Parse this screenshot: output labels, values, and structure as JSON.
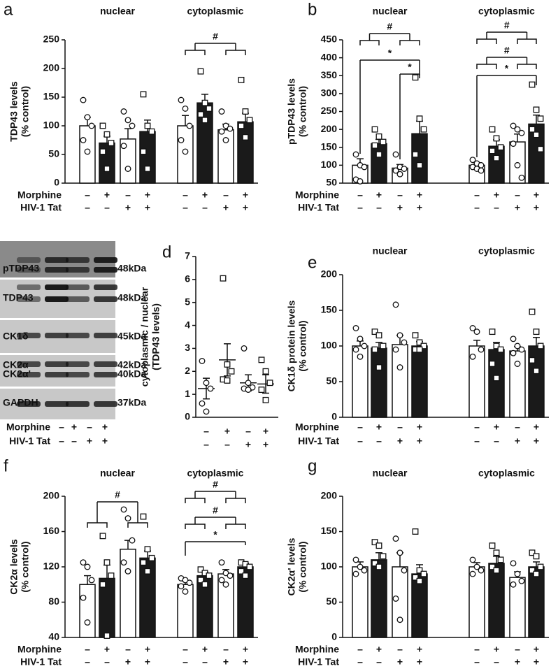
{
  "chart_data": [
    {
      "type": "bar",
      "panel": "a",
      "ylabel": [
        "TDP43 levels",
        "(% control)"
      ],
      "groups": [
        "nuclear",
        "cytoplasmic"
      ],
      "ylim": [
        0,
        250
      ],
      "yticks": [
        0,
        50,
        100,
        150,
        200,
        250
      ],
      "values": [
        100,
        70,
        77,
        90,
        100,
        140,
        93,
        107
      ],
      "errors": [
        15,
        12,
        18,
        20,
        18,
        15,
        10,
        15
      ],
      "points": [
        [
          145,
          115,
          100,
          75,
          55
        ],
        [
          100,
          85,
          70,
          55,
          25
        ],
        [
          125,
          110,
          100,
          65,
          25
        ],
        [
          155,
          100,
          90,
          55,
          25
        ],
        [
          145,
          130,
          100,
          75,
          55
        ],
        [
          195,
          140,
          130,
          120,
          110
        ],
        [
          125,
          100,
          95,
          90,
          75
        ],
        [
          180,
          125,
          110,
          100,
          80
        ]
      ],
      "colors": [
        "#ffffff",
        "#1a1a1a",
        "#ffffff",
        "#1a1a1a",
        "#ffffff",
        "#1a1a1a",
        "#ffffff",
        "#1a1a1a"
      ],
      "markers": [
        "circle",
        "square",
        "circle",
        "square",
        "circle",
        "square",
        "circle",
        "square"
      ],
      "annotations": [
        "#"
      ],
      "rows": [
        {
          "label": "Morphine",
          "signs": [
            "–",
            "+",
            "–",
            "+",
            "–",
            "+",
            "–",
            "+"
          ]
        },
        {
          "label": "HIV-1 Tat",
          "signs": [
            "–",
            "–",
            "+",
            "+",
            "–",
            "–",
            "+",
            "+"
          ]
        }
      ]
    },
    {
      "type": "bar",
      "panel": "b",
      "ylabel": [
        "pTDP43 levels",
        "(% control)"
      ],
      "groups": [
        "nuclear",
        "cytoplasmic"
      ],
      "ylim": [
        50,
        450
      ],
      "yticks": [
        50,
        100,
        150,
        200,
        250,
        300,
        350,
        400,
        450
      ],
      "values": [
        100,
        160,
        92,
        188,
        100,
        153,
        165,
        215
      ],
      "errors": [
        18,
        12,
        10,
        35,
        7,
        18,
        22,
        25
      ],
      "points": [
        [
          130,
          100,
          95,
          60,
          55
        ],
        [
          200,
          180,
          165,
          155,
          130
        ],
        [
          130,
          95,
          90,
          85,
          75
        ],
        [
          345,
          230,
          200,
          130,
          100
        ],
        [
          115,
          105,
          100,
          95,
          90,
          85
        ],
        [
          200,
          175,
          150,
          140,
          120
        ],
        [
          210,
          200,
          190,
          160,
          100,
          65
        ],
        [
          325,
          255,
          230,
          200,
          185,
          145
        ]
      ],
      "colors": [
        "#ffffff",
        "#1a1a1a",
        "#ffffff",
        "#1a1a1a",
        "#ffffff",
        "#1a1a1a",
        "#ffffff",
        "#1a1a1a"
      ],
      "markers": [
        "circle",
        "square",
        "circle",
        "square",
        "circle",
        "square",
        "circle",
        "square"
      ],
      "annotations": [
        "#",
        "*",
        "*",
        "#",
        "#",
        "*"
      ],
      "rows": [
        {
          "label": "Morphine",
          "signs": [
            "–",
            "+",
            "–",
            "+",
            "–",
            "+",
            "–",
            "+"
          ]
        },
        {
          "label": "HIV-1 Tat",
          "signs": [
            "–",
            "–",
            "+",
            "+",
            "–",
            "–",
            "+",
            "+"
          ]
        }
      ]
    },
    {
      "type": "dotplot",
      "panel": "d",
      "ylabel": [
        "cytoplasmic / nuclear",
        "(TDP43 levels)"
      ],
      "ylim": [
        0,
        7
      ],
      "yticks": [
        0,
        1,
        2,
        3,
        4,
        5,
        6,
        7
      ],
      "values": [
        1.25,
        2.5,
        1.5,
        1.45
      ],
      "errors": [
        0.45,
        0.7,
        0.35,
        0.4
      ],
      "points": [
        [
          2.45,
          1.5,
          1.25,
          0.6,
          0.25
        ],
        [
          6.05,
          2.3,
          2.0,
          1.65,
          1.6
        ],
        [
          3.0,
          1.5,
          1.3,
          1.25,
          1.2
        ],
        [
          2.5,
          2.0,
          1.5,
          1.2,
          0.75
        ]
      ],
      "markers": [
        "circle",
        "square",
        "circle",
        "square"
      ],
      "rows": [
        {
          "signs": [
            "–",
            "+",
            "–",
            "+"
          ]
        },
        {
          "signs": [
            "–",
            "–",
            "+",
            "+"
          ]
        }
      ]
    },
    {
      "type": "bar",
      "panel": "e",
      "ylabel": [
        "CK1δ protein levels",
        "(% control)"
      ],
      "groups": [
        "nuclear",
        "cytoplasmic"
      ],
      "ylim": [
        0,
        200
      ],
      "yticks": [
        0,
        50,
        100,
        150,
        200
      ],
      "values": [
        100,
        97,
        102,
        100,
        100,
        95,
        93,
        100
      ],
      "errors": [
        7,
        8,
        13,
        6,
        8,
        10,
        6,
        12
      ],
      "points": [
        [
          125,
          110,
          100,
          95,
          85
        ],
        [
          120,
          115,
          100,
          95,
          70
        ],
        [
          158,
          115,
          105,
          95,
          70
        ],
        [
          115,
          105,
          100,
          95,
          95
        ],
        [
          125,
          120,
          95,
          85
        ],
        [
          120,
          100,
          95,
          75,
          55
        ],
        [
          110,
          100,
          95,
          90,
          75
        ],
        [
          148,
          120,
          100,
          80,
          65
        ]
      ],
      "colors": [
        "#ffffff",
        "#1a1a1a",
        "#ffffff",
        "#1a1a1a",
        "#ffffff",
        "#1a1a1a",
        "#ffffff",
        "#1a1a1a"
      ],
      "markers": [
        "circle",
        "square",
        "circle",
        "square",
        "circle",
        "square",
        "circle",
        "square"
      ],
      "annotations": [],
      "rows": [
        {
          "label": "Morphine",
          "signs": [
            "–",
            "+",
            "–",
            "+",
            "–",
            "+",
            "–",
            "+"
          ]
        },
        {
          "label": "HIV-1 Tat",
          "signs": [
            "–",
            "–",
            "+",
            "+",
            "–",
            "–",
            "+",
            "+"
          ]
        }
      ]
    },
    {
      "type": "bar",
      "panel": "f",
      "ylabel": [
        "CK2α levels",
        "(% control)"
      ],
      "groups": [
        "nuclear",
        "cytoplasmic"
      ],
      "ylim": [
        40,
        200
      ],
      "yticks": [
        40,
        80,
        120,
        160,
        200
      ],
      "values": [
        100,
        107,
        140,
        130,
        100,
        110,
        112,
        120
      ],
      "errors": [
        10,
        15,
        10,
        8,
        4,
        4,
        5,
        4
      ],
      "points": [
        [
          125,
          120,
          105,
          85,
          57
        ],
        [
          155,
          125,
          110,
          100,
          42
        ],
        [
          185,
          175,
          150,
          125,
          115
        ],
        [
          177,
          140,
          130,
          125,
          115
        ],
        [
          107,
          105,
          102,
          98,
          92
        ],
        [
          117,
          113,
          110,
          105,
          100
        ],
        [
          125,
          113,
          110,
          105,
          100
        ],
        [
          125,
          123,
          120,
          115,
          110
        ]
      ],
      "colors": [
        "#ffffff",
        "#1a1a1a",
        "#ffffff",
        "#1a1a1a",
        "#ffffff",
        "#1a1a1a",
        "#ffffff",
        "#1a1a1a"
      ],
      "markers": [
        "circle",
        "square",
        "circle",
        "square",
        "circle",
        "square",
        "circle",
        "square"
      ],
      "annotations": [
        "#",
        "#",
        "#",
        "*"
      ],
      "rows": [
        {
          "label": "Morphine",
          "signs": [
            "–",
            "+",
            "–",
            "+",
            "–",
            "+",
            "–",
            "+"
          ]
        },
        {
          "label": "HIV-1 Tat",
          "signs": [
            "–",
            "–",
            "+",
            "+",
            "–",
            "–",
            "+",
            "+"
          ]
        }
      ]
    },
    {
      "type": "bar",
      "panel": "g",
      "ylabel": [
        "CK2α' levels",
        "(% control)"
      ],
      "groups": [
        "nuclear",
        "cytoplasmic"
      ],
      "ylim": [
        0,
        200
      ],
      "yticks": [
        0,
        50,
        100,
        150,
        200
      ],
      "values": [
        100,
        110,
        100,
        90,
        100,
        105,
        85,
        100
      ],
      "errors": [
        7,
        10,
        20,
        13,
        6,
        10,
        8,
        7
      ],
      "points": [
        [
          110,
          100,
          95,
          90
        ],
        [
          135,
          130,
          115,
          105,
          100
        ],
        [
          140,
          120,
          95,
          55,
          25
        ],
        [
          150,
          95,
          90,
          85,
          80
        ],
        [
          110,
          100,
          95,
          90
        ],
        [
          130,
          120,
          110,
          100,
          95
        ],
        [
          105,
          90,
          80,
          75
        ],
        [
          120,
          115,
          100,
          95,
          90
        ]
      ],
      "colors": [
        "#ffffff",
        "#1a1a1a",
        "#ffffff",
        "#1a1a1a",
        "#ffffff",
        "#1a1a1a",
        "#ffffff",
        "#1a1a1a"
      ],
      "markers": [
        "circle",
        "square",
        "circle",
        "square",
        "circle",
        "square",
        "circle",
        "square"
      ],
      "annotations": [],
      "rows": [
        {
          "label": "Morphine",
          "signs": [
            "–",
            "+",
            "–",
            "+",
            "–",
            "+",
            "–",
            "+"
          ]
        },
        {
          "label": "HIV-1 Tat",
          "signs": [
            "–",
            "–",
            "+",
            "+",
            "–",
            "–",
            "+",
            "+"
          ]
        }
      ]
    }
  ],
  "blot": {
    "panel": "c",
    "proteins": [
      "pTDP43",
      "TDP43",
      "CK1δ",
      "CK2α",
      "CK2α'",
      "GAPDH"
    ],
    "sizes": [
      "48kDa",
      "48kDa",
      "45kDa",
      "42kDa",
      "40kDa",
      "37kDa"
    ],
    "rows": [
      {
        "label": "Morphine",
        "signs": [
          "–",
          "+",
          "–",
          "+"
        ]
      },
      {
        "label": "HIV-1 Tat",
        "signs": [
          "–",
          "–",
          "+",
          "+"
        ]
      }
    ]
  }
}
